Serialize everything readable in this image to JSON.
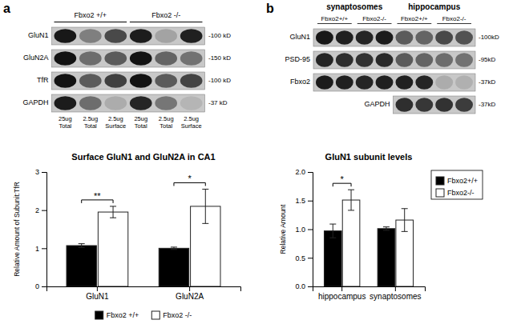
{
  "chart_data": [
    {
      "type": "blot",
      "panel_label": "a",
      "groups": [
        "Fbxo2 +/+",
        "Fbxo2 -/-"
      ],
      "lanes": [
        "25ug\nTotal",
        "2.5ug\nTotal",
        "2.5ug\nSurface",
        "25ug\nTotal",
        "2.5ug\nTotal",
        "2.5ug\nSurface"
      ],
      "rows": [
        {
          "name": "GluN1",
          "kd": "-100 kD",
          "values": [
            0.92,
            0.35,
            0.65,
            0.9,
            0.15,
            0.88
          ]
        },
        {
          "name": "GluN2A",
          "kd": "-150 kD",
          "values": [
            0.95,
            0.45,
            0.55,
            0.95,
            0.5,
            0.42
          ]
        },
        {
          "name": "TfR",
          "kd": "-100 kD",
          "values": [
            0.95,
            0.55,
            0.7,
            0.95,
            0.55,
            0.68
          ]
        },
        {
          "name": "GAPDH",
          "kd": "-37 kD",
          "values": [
            0.9,
            0.45,
            0.1,
            0.85,
            0.4,
            0.05
          ]
        }
      ]
    },
    {
      "type": "blot",
      "panel_label": "b",
      "groups": [
        "synaptosomes",
        "hippocampus"
      ],
      "subgroups": [
        "Fbxo2+/+",
        "Fbxo2-/-",
        "Fbxo2+/+",
        "Fbxo2-/-"
      ],
      "rows": [
        {
          "name": "GluN1",
          "kd": "-100kD",
          "values": [
            0.92,
            0.88,
            0.85,
            0.9,
            0.55,
            0.5,
            0.65,
            0.6
          ]
        },
        {
          "name": "PSD-95",
          "kd": "-95kD",
          "values": [
            0.85,
            0.8,
            0.78,
            0.82,
            0.55,
            0.5,
            0.45,
            0.42
          ]
        },
        {
          "name": "Fbxo2",
          "kd": "-37kD",
          "values": [
            0.9,
            0.88,
            0.85,
            0.88,
            0.88,
            0.85,
            0.1,
            0.08
          ]
        },
        {
          "name": "GAPDH",
          "kd": "-37kD",
          "values": [
            null,
            null,
            null,
            null,
            0.8,
            0.75,
            0.78,
            0.72
          ]
        }
      ]
    },
    {
      "type": "bar",
      "title": "Surface GluN1 and GluN2A in CA1",
      "ylabel": "Relative Amount of Subunit:TfR",
      "categories": [
        "GluN1",
        "GluN2A"
      ],
      "series": [
        {
          "name": "Fbxo2 +/+",
          "color": "#000000",
          "values": [
            1.07,
            1.0
          ],
          "errors": [
            0.05,
            0.03
          ]
        },
        {
          "name": "Fbxo2 -/-",
          "color": "#ffffff",
          "values": [
            1.95,
            2.1
          ],
          "errors": [
            0.15,
            0.45
          ]
        }
      ],
      "ylim": [
        0,
        3
      ],
      "yticks": [
        0,
        1,
        2,
        3
      ],
      "grid": false,
      "legend": "bottom",
      "annotations": [
        {
          "text": "**",
          "category": "GluN1"
        },
        {
          "text": "*",
          "category": "GluN2A"
        }
      ]
    },
    {
      "type": "bar",
      "title": "GluN1 subunit levels",
      "ylabel": "Relative Amount",
      "categories": [
        "hippocampus",
        "synaptosomes"
      ],
      "series": [
        {
          "name": "Fbxo2+/+",
          "color": "#000000",
          "values": [
            0.97,
            1.01
          ],
          "errors": [
            0.12,
            0.03
          ]
        },
        {
          "name": "Fbxo2-/-",
          "color": "#ffffff",
          "values": [
            1.51,
            1.16
          ],
          "errors": [
            0.18,
            0.2
          ]
        }
      ],
      "ylim": [
        0,
        2
      ],
      "yticks": [
        {
          "value": 0,
          "label": "0.0"
        },
        0.5,
        {
          "value": 1.0,
          "label": "1.0"
        },
        1.5,
        {
          "value": 2.0,
          "label": "2.0"
        }
      ],
      "grid": false,
      "legend": "right",
      "annotations": [
        {
          "text": "*",
          "category": "hippocampus"
        }
      ]
    }
  ]
}
